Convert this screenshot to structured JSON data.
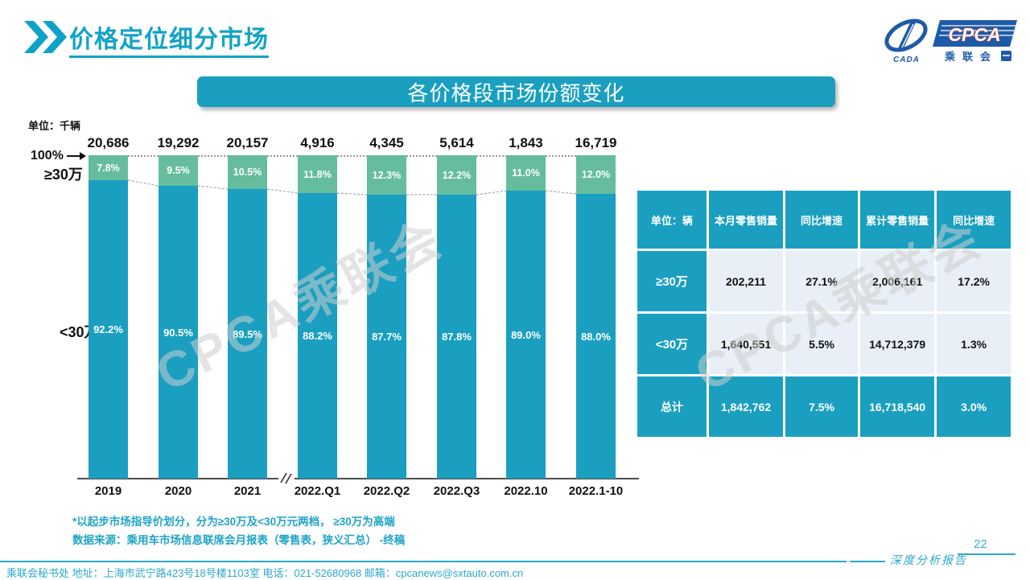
{
  "header": {
    "title": "价格定位细分市场",
    "logo": {
      "cpca": "CPCA",
      "cada": "CADA",
      "cn": "乘联会"
    }
  },
  "banner": {
    "title": "各价格段市场份额变化"
  },
  "chart": {
    "unit_label": "单位：千辆",
    "axis_100_label": "100%",
    "upper_segment_label": "≥30万",
    "lower_segment_label": "<30万",
    "footnote1": "*以起步市场指导价划分，分为≥30万及<30万元两档， ≥30万为高端",
    "footnote2": "数据来源：乘用车市场信息联席会月报表（零售表，狭义汇总） -终稿"
  },
  "chart_data": {
    "type": "bar",
    "stacked": true,
    "title": "各价格段市场份额变化",
    "unit": "千辆",
    "ylim": [
      0,
      100
    ],
    "categories": [
      "2019",
      "2020",
      "2021",
      "2022.Q1",
      "2022.Q2",
      "2022.Q3",
      "2022.10",
      "2022.1-10"
    ],
    "totals": [
      20686,
      19292,
      20157,
      4916,
      4345,
      5614,
      1843,
      16719
    ],
    "totals_display": [
      "20,686",
      "19,292",
      "20,157",
      "4,916",
      "4,345",
      "5,614",
      "1,843",
      "16,719"
    ],
    "series": [
      {
        "name": "≥30万",
        "color": "#65BD9E",
        "values": [
          7.8,
          9.5,
          10.5,
          11.8,
          12.3,
          12.2,
          11.0,
          12.0
        ],
        "labels": [
          "7.8%",
          "9.5%",
          "10.5%",
          "11.8%",
          "12.3%",
          "12.2%",
          "11.0%",
          "12.0%"
        ]
      },
      {
        "name": "<30万",
        "color": "#1A9FC0",
        "values": [
          92.2,
          90.5,
          89.5,
          88.2,
          87.7,
          87.8,
          89.0,
          88.0
        ],
        "labels": [
          "92.2%",
          "90.5%",
          "89.5%",
          "88.2%",
          "87.7%",
          "87.8%",
          "89.0%",
          "88.0%"
        ]
      }
    ],
    "legend_position": "left-of-bars",
    "grid": false,
    "axis_break_after_category": "2021"
  },
  "table": {
    "headers": [
      "单位：辆",
      "本月零售销量",
      "同比增速",
      "累计零售销量",
      "同比增速"
    ],
    "rows": [
      {
        "label": "≥30万",
        "cells": [
          "202,211",
          "27.1%",
          "2,006,161",
          "17.2%"
        ],
        "total": false
      },
      {
        "label": "<30万",
        "cells": [
          "1,640,551",
          "5.5%",
          "14,712,379",
          "1.3%"
        ],
        "total": false
      },
      {
        "label": "总计",
        "cells": [
          "1,842,762",
          "7.5%",
          "16,718,540",
          "3.0%"
        ],
        "total": true
      }
    ]
  },
  "watermark": "CPCA乘联会",
  "footer": {
    "left_text": "乘联会秘书处  地址：上海市武宁路423号18号楼1103室 电话：021-52680968  邮箱：cpcanews@sxtauto.com.cn",
    "report_label": "深度分析报告",
    "page_number": "22"
  },
  "colors": {
    "teal": "#1A9FC0",
    "green": "#65BD9E",
    "title_teal": "#12A3C6",
    "footnote_teal": "#1FA4C6",
    "footer_teal": "#2BA9CB",
    "table_cell_bg": "#E9EFF7",
    "axis_gray": "#4d4d4d",
    "logo_navy": "#1D5BA9"
  }
}
